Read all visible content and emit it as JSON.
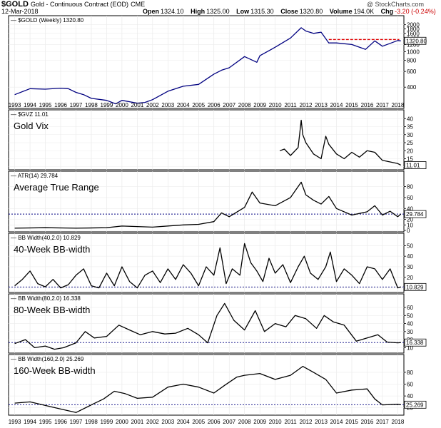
{
  "header": {
    "symbol": "$GOLD",
    "description": "Gold - Continuous Contract (EOD)",
    "exchange": "CME",
    "date": "12-Mar-2018",
    "open_label": "Open",
    "open": "1324.10",
    "high_label": "High",
    "high": "1325.00",
    "low_label": "Low",
    "low": "1315.30",
    "close_label": "Close",
    "close": "1320.80",
    "volume_label": "Volume",
    "volume": "194.0K",
    "chg_label": "Chg",
    "chg": "-3.20 (-0.24%)",
    "brand": "@ StockCharts.com"
  },
  "colors": {
    "price_line": "#000080",
    "indicator_line": "#000000",
    "reference_line": "#000080",
    "resistance_line": "#e00000"
  },
  "chart_data": [
    {
      "type": "line",
      "label": "$GOLD (Weekly) 1320.80",
      "scale": "log",
      "last_value": "1320.80",
      "yticks": [
        400,
        600,
        800,
        1000,
        1200,
        1400,
        1600,
        1800,
        2000
      ],
      "ylim": [
        240,
        2100
      ],
      "x": [
        1993.0,
        1994.0,
        1995.0,
        1996.0,
        1996.5,
        1997.0,
        1997.5,
        1998.0,
        1999.0,
        1999.6,
        2000.0,
        2001.0,
        2001.5,
        2002.0,
        2003.0,
        2004.0,
        2005.0,
        2006.0,
        2006.5,
        2007.0,
        2008.0,
        2008.8,
        2009.0,
        2010.0,
        2011.0,
        2011.7,
        2012.0,
        2012.5,
        2013.0,
        2013.5,
        2014.0,
        2015.0,
        2015.9,
        2016.5,
        2017.0,
        2018.0,
        2018.2
      ],
      "y": [
        330,
        385,
        380,
        390,
        385,
        350,
        330,
        300,
        285,
        260,
        285,
        265,
        270,
        290,
        360,
        410,
        430,
        560,
        620,
        660,
        880,
        760,
        900,
        1120,
        1420,
        1850,
        1700,
        1600,
        1650,
        1250,
        1250,
        1200,
        1060,
        1320,
        1150,
        1330,
        1320
      ]
    },
    {
      "type": "line",
      "label": "$GVZ 11.01",
      "title": "Gold Vix",
      "last_value": "11.01",
      "yticks": [
        10,
        15,
        20,
        25,
        30,
        35,
        40
      ],
      "ylim": [
        9,
        41
      ],
      "x": [
        2010.3,
        2010.6,
        2011.0,
        2011.5,
        2011.7,
        2011.8,
        2012.0,
        2012.5,
        2013.0,
        2013.3,
        2013.5,
        2014.0,
        2014.5,
        2015.0,
        2015.5,
        2016.0,
        2016.5,
        2017.0,
        2017.5,
        2018.0,
        2018.2
      ],
      "y": [
        20,
        21,
        17,
        22,
        39,
        30,
        25,
        18,
        15,
        29,
        24,
        18,
        15,
        19,
        16,
        20,
        19,
        14,
        13,
        12,
        11.01
      ]
    },
    {
      "type": "line",
      "label": "ATR(14) 29.784",
      "title": "Average True Range",
      "last_value": "29.784",
      "reference": 29.784,
      "yticks": [
        0,
        10,
        20,
        40,
        60,
        80
      ],
      "ylim": [
        0,
        95
      ],
      "x": [
        1993.0,
        1995.0,
        1997.0,
        1999.0,
        2000.0,
        2002.0,
        2004.0,
        2005.0,
        2006.0,
        2006.5,
        2007.0,
        2008.0,
        2008.5,
        2009.0,
        2010.0,
        2011.0,
        2011.7,
        2012.0,
        2012.5,
        2013.0,
        2013.5,
        2014.0,
        2015.0,
        2016.0,
        2016.5,
        2017.0,
        2017.5,
        2018.0,
        2018.2
      ],
      "y": [
        4,
        5,
        4,
        5,
        8,
        6,
        10,
        11,
        16,
        32,
        25,
        42,
        70,
        50,
        45,
        60,
        88,
        65,
        55,
        48,
        62,
        40,
        28,
        34,
        45,
        28,
        35,
        25,
        29.784
      ]
    },
    {
      "type": "line",
      "label": "BB Width(40,2.0) 10.829",
      "title": "40-Week BB-width",
      "last_value": "10.829",
      "reference": 10.829,
      "yticks": [
        10,
        20,
        30,
        40,
        50
      ],
      "ylim": [
        7,
        55
      ],
      "x": [
        1993.0,
        1993.5,
        1994.0,
        1994.5,
        1995.0,
        1995.5,
        1996.0,
        1996.5,
        1997.0,
        1997.5,
        1998.0,
        1998.5,
        1999.0,
        1999.5,
        2000.0,
        2000.5,
        2001.0,
        2001.5,
        2002.0,
        2002.5,
        2003.0,
        2003.5,
        2004.0,
        2004.5,
        2005.0,
        2005.5,
        2006.0,
        2006.4,
        2006.8,
        2007.2,
        2007.7,
        2008.0,
        2008.4,
        2008.8,
        2009.2,
        2009.6,
        2010.0,
        2010.5,
        2011.0,
        2011.5,
        2011.9,
        2012.3,
        2012.8,
        2013.3,
        2013.6,
        2014.0,
        2014.5,
        2015.0,
        2015.5,
        2016.0,
        2016.5,
        2017.0,
        2017.5,
        2018.0,
        2018.2
      ],
      "y": [
        12,
        18,
        26,
        14,
        11,
        18,
        10,
        13,
        22,
        28,
        12,
        10,
        24,
        12,
        30,
        16,
        10,
        22,
        26,
        15,
        28,
        18,
        32,
        24,
        12,
        30,
        22,
        48,
        14,
        28,
        22,
        52,
        34,
        26,
        16,
        38,
        24,
        32,
        15,
        30,
        40,
        24,
        18,
        30,
        44,
        16,
        28,
        22,
        14,
        30,
        28,
        18,
        28,
        10,
        10.829
      ]
    },
    {
      "type": "line",
      "label": "BB Width(80,2.0) 16.338",
      "title": "80-Week BB-width",
      "last_value": "16.338",
      "reference": 16.338,
      "yticks": [
        10,
        20,
        30,
        40,
        50,
        60
      ],
      "ylim": [
        5,
        68
      ],
      "x": [
        1993.0,
        1993.7,
        1994.3,
        1995.0,
        1995.6,
        1996.2,
        1997.0,
        1997.6,
        1998.2,
        1999.0,
        1999.8,
        2000.5,
        2001.2,
        2002.0,
        2002.8,
        2003.5,
        2004.3,
        2005.0,
        2005.6,
        2006.2,
        2006.7,
        2007.3,
        2008.0,
        2008.7,
        2009.3,
        2010.0,
        2010.7,
        2011.3,
        2012.0,
        2012.7,
        2013.2,
        2013.8,
        2014.5,
        2015.3,
        2016.0,
        2016.7,
        2017.3,
        2018.0,
        2018.2
      ],
      "y": [
        15,
        20,
        10,
        12,
        8,
        10,
        16,
        30,
        22,
        24,
        38,
        32,
        26,
        30,
        27,
        28,
        34,
        26,
        16,
        50,
        65,
        44,
        32,
        56,
        30,
        40,
        36,
        50,
        46,
        34,
        50,
        42,
        38,
        18,
        22,
        26,
        17,
        16,
        16.338
      ]
    },
    {
      "type": "line",
      "label": "BB Width(160,2.0) 25.269",
      "title": "160-Week BB-width",
      "last_value": "25.269",
      "reference": 25.269,
      "yticks": [
        20,
        40,
        60,
        80
      ],
      "ylim": [
        10,
        98
      ],
      "x": [
        1993.0,
        1994.0,
        1995.0,
        1996.0,
        1997.0,
        1998.0,
        1998.8,
        1999.5,
        2000.2,
        2001.0,
        2002.0,
        2003.0,
        2004.0,
        2005.0,
        2006.0,
        2006.7,
        2007.5,
        2008.0,
        2009.0,
        2010.0,
        2011.0,
        2011.8,
        2012.5,
        2013.3,
        2014.0,
        2015.0,
        2016.0,
        2016.5,
        2017.0,
        2018.0,
        2018.2
      ],
      "y": [
        28,
        30,
        24,
        18,
        12,
        25,
        35,
        48,
        44,
        36,
        38,
        55,
        60,
        55,
        45,
        58,
        72,
        75,
        78,
        68,
        75,
        90,
        80,
        68,
        45,
        50,
        52,
        35,
        25,
        26,
        25.269
      ]
    }
  ],
  "x_axis": {
    "years": [
      "1993",
      "1994",
      "1995",
      "1996",
      "1997",
      "1998",
      "1999",
      "2000",
      "2001",
      "2002",
      "2003",
      "2004",
      "2005",
      "2006",
      "2007",
      "2008",
      "2009",
      "2010",
      "2011",
      "2012",
      "2013",
      "2014",
      "2015",
      "2016",
      "2017",
      "2018"
    ],
    "start": 1992.6,
    "end": 2018.4
  },
  "resistance": {
    "value": 1365,
    "from": 2013.5,
    "to": 2018.1
  }
}
